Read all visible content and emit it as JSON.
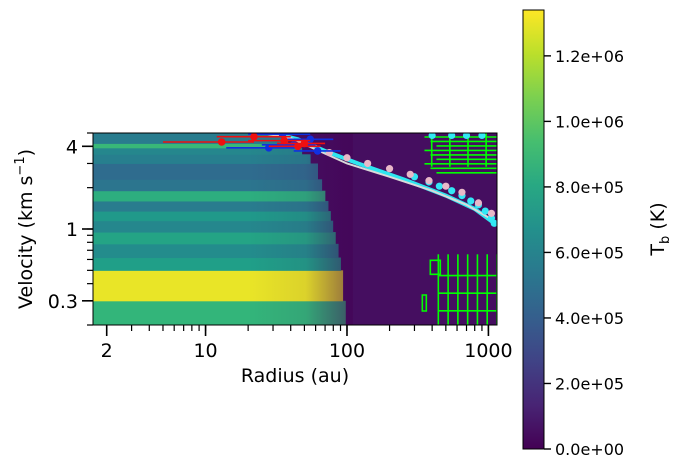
{
  "chart_data": {
    "type": "heatmap",
    "xlabel": "Radius (au)",
    "ylabel": "Velocity (km s",
    "ylabel_sup": "−1",
    "ylabel_end": ")",
    "xscale": "log",
    "yscale": "log",
    "xlim": [
      1.6,
      1150
    ],
    "ylim": [
      0.2,
      5.0
    ],
    "x_ticks": [
      {
        "value": 2,
        "label": "2"
      },
      {
        "value": 10,
        "label": "10"
      },
      {
        "value": 100,
        "label": "100"
      },
      {
        "value": 1000,
        "label": "1000"
      }
    ],
    "y_ticks": [
      {
        "value": 0.3,
        "label": "0.3"
      },
      {
        "value": 1,
        "label": "1"
      },
      {
        "value": 4,
        "label": "4"
      }
    ],
    "colorbar": {
      "label": "T",
      "label_sub": "b",
      "label_end": " (K)",
      "colormap": "viridis",
      "range": [
        0,
        1340000
      ],
      "ticks": [
        {
          "value": 0,
          "label": "0.0e+00"
        },
        {
          "value": 200000,
          "label": "2.0e+05"
        },
        {
          "value": 400000,
          "label": "4.0e+05"
        },
        {
          "value": 600000,
          "label": "6.0e+05"
        },
        {
          "value": 800000,
          "label": "8.0e+05"
        },
        {
          "value": 1000000,
          "label": "1.0e+06"
        },
        {
          "value": 1200000,
          "label": "1.2e+06"
        }
      ]
    },
    "heatmap_bands": [
      {
        "v0": 0.2,
        "v1": 0.3,
        "tb": 880000
      },
      {
        "v0": 0.3,
        "v1": 0.5,
        "tb": 1300000
      },
      {
        "v0": 0.5,
        "v1": 0.62,
        "tb": 750000
      },
      {
        "v0": 0.62,
        "v1": 0.78,
        "tb": 650000
      },
      {
        "v0": 0.78,
        "v1": 0.95,
        "tb": 780000
      },
      {
        "v0": 0.95,
        "v1": 1.15,
        "tb": 620000
      },
      {
        "v0": 1.15,
        "v1": 1.35,
        "tb": 720000
      },
      {
        "v0": 1.35,
        "v1": 1.6,
        "tb": 560000
      },
      {
        "v0": 1.6,
        "v1": 1.9,
        "tb": 840000
      },
      {
        "v0": 1.9,
        "v1": 2.3,
        "tb": 520000
      },
      {
        "v0": 2.3,
        "v1": 3.0,
        "tb": 470000
      },
      {
        "v0": 3.0,
        "v1": 3.5,
        "tb": 580000
      },
      {
        "v0": 3.5,
        "v1": 3.9,
        "tb": 620000
      },
      {
        "v0": 3.9,
        "v1": 4.2,
        "tb": 900000
      },
      {
        "v0": 4.2,
        "v1": 5.0,
        "tb": 560000
      }
    ],
    "background_tb": 50000,
    "cutoff_curve": [
      [
        35,
        5.0
      ],
      [
        60,
        3.0
      ],
      [
        75,
        1.4
      ],
      [
        90,
        0.6
      ],
      [
        100,
        0.2
      ]
    ],
    "model_curve_white": [
      [
        25,
        5.0
      ],
      [
        40,
        4.6
      ],
      [
        60,
        3.8
      ],
      [
        100,
        3.0
      ],
      [
        200,
        2.4
      ],
      [
        400,
        1.9
      ],
      [
        700,
        1.5
      ],
      [
        1100,
        1.15
      ]
    ],
    "model_curve_cyan": [
      [
        30,
        5.0
      ],
      [
        45,
        4.5
      ],
      [
        70,
        3.7
      ],
      [
        120,
        3.0
      ],
      [
        250,
        2.3
      ],
      [
        500,
        1.75
      ],
      [
        800,
        1.4
      ],
      [
        1100,
        1.1
      ]
    ],
    "points_pink": [
      [
        75,
        3.6
      ],
      [
        100,
        3.3
      ],
      [
        140,
        3.0
      ],
      [
        200,
        2.75
      ],
      [
        280,
        2.5
      ],
      [
        380,
        2.25
      ],
      [
        500,
        2.05
      ],
      [
        650,
        1.85
      ],
      [
        850,
        1.55
      ],
      [
        1050,
        1.3
      ]
    ],
    "points_cyan": [
      [
        300,
        2.4
      ],
      [
        380,
        2.2
      ],
      [
        450,
        2.05
      ],
      [
        550,
        1.9
      ],
      [
        650,
        1.75
      ],
      [
        750,
        1.6
      ],
      [
        850,
        1.5
      ],
      [
        950,
        1.35
      ],
      [
        1050,
        1.2
      ],
      [
        1100,
        1.1
      ],
      [
        400,
        4.8
      ],
      [
        550,
        4.8
      ],
      [
        700,
        4.8
      ],
      [
        900,
        4.8
      ]
    ],
    "points_red": [
      {
        "x": 13,
        "y": 4.3,
        "xerr": [
          5,
          22
        ]
      },
      {
        "x": 22,
        "y": 4.7,
        "xerr": [
          12,
          40
        ]
      },
      {
        "x": 36,
        "y": 4.4,
        "xerr": [
          20,
          55
        ]
      },
      {
        "x": 45,
        "y": 4.0,
        "xerr": [
          28,
          65
        ]
      },
      {
        "x": 50,
        "y": 4.2,
        "xerr": [
          32,
          70
        ]
      }
    ],
    "points_blue": [
      {
        "x": 28,
        "y": 3.9,
        "xerr": [
          14,
          45
        ]
      },
      {
        "x": 35,
        "y": 4.9,
        "xerr": [
          20,
          55
        ]
      },
      {
        "x": 42,
        "y": 4.1,
        "xerr": [
          25,
          60
        ]
      },
      {
        "x": 55,
        "y": 4.5,
        "xerr": [
          35,
          80
        ]
      },
      {
        "x": 62,
        "y": 3.7,
        "xerr": [
          42,
          90
        ]
      }
    ],
    "green_contours": {
      "color": "#00ff00",
      "upper_region": {
        "x": [
          300,
          1150
        ],
        "y": [
          2.4,
          5.0
        ]
      },
      "lower_region": {
        "x": [
          330,
          1150
        ],
        "y": [
          0.2,
          0.8
        ]
      }
    }
  }
}
